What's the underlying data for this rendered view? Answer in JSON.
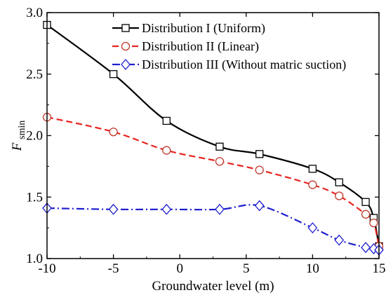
{
  "chart_data": {
    "type": "line",
    "xlabel": "Groundwater level  (m)",
    "ylabel_main": "F",
    "ylabel_sub": "smin",
    "xlim": [
      -10,
      15
    ],
    "ylim": [
      1.0,
      3.0
    ],
    "xticks": [
      -10,
      -5,
      0,
      5,
      10,
      15
    ],
    "xtick_labels": [
      "-10",
      "-5",
      "0",
      "5",
      "10",
      "15"
    ],
    "yticks": [
      1.0,
      1.5,
      2.0,
      2.5,
      3.0
    ],
    "ytick_labels": [
      "1.0",
      "1.5",
      "2.0",
      "2.5",
      "3.0"
    ],
    "legend_position": "top-right",
    "series": [
      {
        "name": "Distribution I (Uniform)",
        "color": "#000000",
        "line_style": "solid",
        "marker": "square",
        "marker_color": "#000000",
        "x": [
          -10,
          -5,
          -1,
          3,
          6,
          10,
          12,
          14,
          14.6,
          15
        ],
        "y": [
          2.9,
          2.5,
          2.12,
          1.91,
          1.85,
          1.73,
          1.62,
          1.46,
          1.33,
          1.1
        ]
      },
      {
        "name": "Distribution II (Linear)",
        "color": "#e8231f",
        "line_style": "dashed",
        "marker": "circle",
        "marker_color": "#c0392b",
        "x": [
          -10,
          -5,
          -1,
          3,
          6,
          10,
          12,
          14,
          14.6,
          15
        ],
        "y": [
          2.15,
          2.03,
          1.88,
          1.79,
          1.72,
          1.6,
          1.51,
          1.36,
          1.29,
          1.1
        ]
      },
      {
        "name": "Distribution III (Without matric suction)",
        "color": "#1f1fd0",
        "line_style": "dashdot",
        "marker": "diamond",
        "marker_color": "#1f1fd0",
        "x": [
          -10,
          -5,
          -1,
          3,
          6,
          10,
          12,
          14,
          14.6,
          15
        ],
        "y": [
          1.41,
          1.4,
          1.4,
          1.4,
          1.43,
          1.25,
          1.15,
          1.09,
          1.08,
          1.07
        ]
      }
    ]
  }
}
